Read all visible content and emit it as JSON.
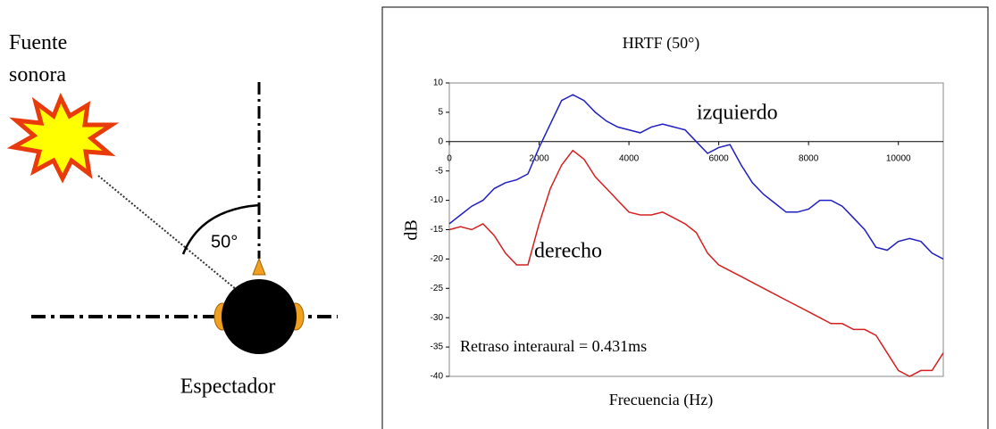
{
  "diagram": {
    "source_label": "Fuente sonora",
    "angle_label": "50°",
    "listener_label": "Espectador"
  },
  "chart_data": {
    "type": "line",
    "title": "HRTF (50°)",
    "x_label": "Frecuencia (Hz)",
    "y_label": "dB",
    "annotation": "Retraso interaural = 0.431ms",
    "x": [
      0,
      250,
      500,
      750,
      1000,
      1250,
      1500,
      1750,
      2000,
      2250,
      2500,
      2750,
      3000,
      3250,
      3500,
      3750,
      4000,
      4250,
      4500,
      4750,
      5000,
      5250,
      5500,
      5750,
      6000,
      6250,
      6500,
      6750,
      7000,
      7250,
      7500,
      7750,
      8000,
      8250,
      8500,
      8750,
      9000,
      9250,
      9500,
      9750,
      10000,
      10250,
      10500,
      10750,
      11000
    ],
    "series": [
      {
        "name": "izquierdo",
        "color": "#1f1fbf",
        "values": [
          -14,
          -12.5,
          -11,
          -10,
          -8,
          -7,
          -6.5,
          -5.5,
          -1,
          3,
          7,
          8,
          7,
          5,
          3.5,
          2.5,
          2,
          1.5,
          2.5,
          3,
          2.5,
          2,
          0,
          -2,
          -1,
          -0.5,
          -4,
          -7,
          -9,
          -10.5,
          -12,
          -12,
          -11.5,
          -10,
          -10,
          -11,
          -13,
          -15,
          -18,
          -18.5,
          -17,
          -16.5,
          -17,
          -19,
          -20
        ]
      },
      {
        "name": "derecho",
        "color": "#d42020",
        "values": [
          -15,
          -14.5,
          -15,
          -14,
          -16,
          -19,
          -21,
          -21,
          -14,
          -8,
          -4,
          -1.5,
          -3,
          -6,
          -8,
          -10,
          -12,
          -12.5,
          -12.5,
          -12,
          -13,
          -14,
          -15.5,
          -19,
          -21,
          -22,
          -23,
          -24,
          -25,
          -26,
          -27,
          -28,
          -29,
          -30,
          -31,
          -31,
          -32,
          -32,
          -33,
          -36,
          -39,
          -40,
          -39,
          -39,
          -36
        ]
      }
    ],
    "xlim": [
      0,
      11000
    ],
    "ylim": [
      -40,
      10
    ],
    "xticks": [
      0,
      2000,
      4000,
      6000,
      8000,
      10000
    ],
    "yticks": [
      -40,
      -35,
      -30,
      -25,
      -20,
      -15,
      -10,
      -5,
      0,
      5,
      10
    ]
  }
}
